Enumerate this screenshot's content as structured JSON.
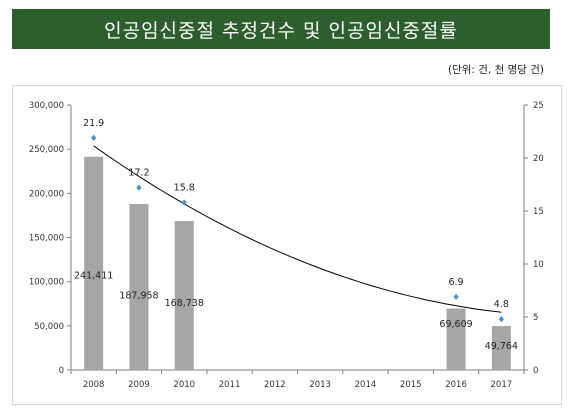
{
  "title": "인공임신중절 추정건수 및 인공임신중절률",
  "unit_note": "(단위: 건, 천 명당 건)",
  "colors": {
    "banner": "#2d5e2e",
    "bar": "#a6a6a6",
    "line": "#000000",
    "marker": "#4f90d0"
  },
  "chart_data": {
    "type": "bar",
    "categories": [
      "2008",
      "2009",
      "2010",
      "2011",
      "2012",
      "2013",
      "2014",
      "2015",
      "2016",
      "2017"
    ],
    "series": [
      {
        "values": [
          241411,
          187958,
          168738,
          null,
          null,
          null,
          null,
          null,
          69609,
          49764
        ],
        "labels": [
          "241,411",
          "187,958",
          "168,738",
          "",
          "",
          "",
          "",
          "",
          "69,609",
          "49,764"
        ],
        "axis": "left"
      },
      {
        "values": [
          21.9,
          17.2,
          15.8,
          null,
          null,
          null,
          null,
          null,
          6.9,
          4.8
        ],
        "labels": [
          "21.9",
          "17.2",
          "15.8",
          "",
          "",
          "",
          "",
          "",
          "6.9",
          "4.8"
        ],
        "axis": "right",
        "trendline": "polynomial"
      }
    ],
    "left_axis": {
      "ylim": [
        0,
        300000
      ],
      "ticks": [
        "0",
        "50,000",
        "100,000",
        "150,000",
        "200,000",
        "250,000",
        "300,000"
      ]
    },
    "right_axis": {
      "ylim": [
        0,
        25
      ],
      "ticks": [
        "0",
        "5",
        "10",
        "15",
        "20",
        "25"
      ]
    },
    "grid": false,
    "legend": "none"
  }
}
